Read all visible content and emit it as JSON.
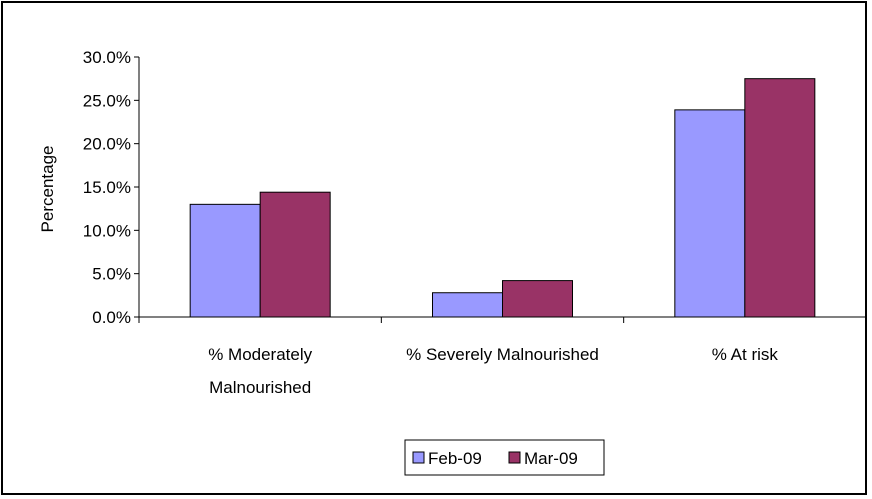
{
  "chart_data": {
    "type": "bar",
    "ylabel": "Percentage",
    "ylim": [
      0,
      30
    ],
    "y_ticks": [
      "0.0%",
      "5.0%",
      "10.0%",
      "15.0%",
      "20.0%",
      "25.0%",
      "30.0%"
    ],
    "y_tick_values": [
      0,
      5,
      10,
      15,
      20,
      25,
      30
    ],
    "categories": [
      [
        "% Moderately",
        "Malnourished"
      ],
      [
        "% Severely Malnourished"
      ],
      [
        "% At risk"
      ]
    ],
    "series": [
      {
        "name": "Feb-09",
        "color": "#9999ff",
        "values": [
          13.0,
          2.8,
          23.9
        ]
      },
      {
        "name": "Mar-09",
        "color": "#993366",
        "values": [
          14.4,
          4.2,
          27.5
        ]
      }
    ],
    "legend_position": "bottom",
    "grid": false
  }
}
